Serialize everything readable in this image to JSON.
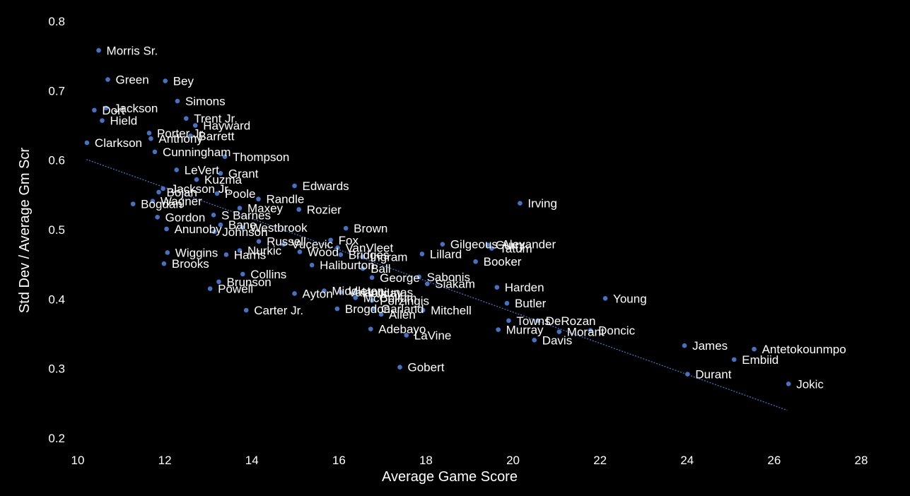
{
  "chart_data": {
    "type": "scatter",
    "title": "",
    "xlabel": "Average Game Score",
    "ylabel": "Std Dev / Average Gm Scr",
    "xlim": [
      10,
      28
    ],
    "ylim": [
      0.2,
      0.8
    ],
    "xticks": [
      10,
      12,
      14,
      16,
      18,
      20,
      22,
      24,
      26,
      28
    ],
    "xtick_labels": [
      "10",
      "12",
      "14",
      "16",
      "18",
      "20",
      "22",
      "24",
      "26",
      "28"
    ],
    "yticks": [
      0.2,
      0.3,
      0.4,
      0.5,
      0.6,
      0.7,
      0.8
    ],
    "ytick_labels": [
      "0.2",
      "0.3",
      "0.4",
      "0.5",
      "0.6",
      "0.7",
      "0.8"
    ],
    "grid": false,
    "legend": "none",
    "trendline": {
      "type": "linear",
      "style": "dotted",
      "x": [
        10.2,
        26.3
      ],
      "y": [
        0.601,
        0.24
      ]
    },
    "colors": {
      "background": "#000000",
      "point": "#4472C4",
      "text": "#ffffff",
      "trendline": "#4472C4"
    },
    "points": [
      {
        "label": "Morris Sr.",
        "x": 10.48,
        "y": 0.758
      },
      {
        "label": "Green",
        "x": 10.69,
        "y": 0.716
      },
      {
        "label": "Bey",
        "x": 12.01,
        "y": 0.714
      },
      {
        "label": "Simons",
        "x": 12.29,
        "y": 0.685
      },
      {
        "label": "Jackson",
        "x": 10.65,
        "y": 0.675
      },
      {
        "label": "Dort",
        "x": 10.38,
        "y": 0.672
      },
      {
        "label": "Trent Jr.",
        "x": 12.49,
        "y": 0.66
      },
      {
        "label": "Hield",
        "x": 10.56,
        "y": 0.657
      },
      {
        "label": "Hayward",
        "x": 12.7,
        "y": 0.65
      },
      {
        "label": "Porter Jr.",
        "x": 11.64,
        "y": 0.639
      },
      {
        "label": "Barrett",
        "x": 12.59,
        "y": 0.635
      },
      {
        "label": "Anthony",
        "x": 11.68,
        "y": 0.631
      },
      {
        "label": "Clarkson",
        "x": 10.21,
        "y": 0.625
      },
      {
        "label": "Cunningham",
        "x": 11.77,
        "y": 0.612
      },
      {
        "label": "Thompson",
        "x": 13.38,
        "y": 0.605
      },
      {
        "label": "LeVert",
        "x": 12.27,
        "y": 0.586
      },
      {
        "label": "Grant",
        "x": 13.28,
        "y": 0.581
      },
      {
        "label": "Kuzma",
        "x": 12.73,
        "y": 0.572
      },
      {
        "label": "Edwards",
        "x": 14.98,
        "y": 0.563
      },
      {
        "label": "Jackson Jr.",
        "x": 11.96,
        "y": 0.559
      },
      {
        "label": "Bojan",
        "x": 11.86,
        "y": 0.554
      },
      {
        "label": "Poole",
        "x": 13.2,
        "y": 0.552
      },
      {
        "label": "Randle",
        "x": 14.15,
        "y": 0.544
      },
      {
        "label": "Wagner",
        "x": 11.72,
        "y": 0.541
      },
      {
        "label": "Bogdan",
        "x": 11.27,
        "y": 0.537
      },
      {
        "label": "Irving",
        "x": 20.16,
        "y": 0.538
      },
      {
        "label": "Maxey",
        "x": 13.72,
        "y": 0.531
      },
      {
        "label": "Rozier",
        "x": 15.08,
        "y": 0.529
      },
      {
        "label": "S Barnes",
        "x": 13.12,
        "y": 0.521
      },
      {
        "label": "Gordon",
        "x": 11.83,
        "y": 0.518
      },
      {
        "label": "Bane",
        "x": 13.28,
        "y": 0.507
      },
      {
        "label": "Brown",
        "x": 16.16,
        "y": 0.502
      },
      {
        "label": "Anunoby",
        "x": 12.04,
        "y": 0.501
      },
      {
        "label": "Johnson",
        "x": 13.14,
        "y": 0.497
      },
      {
        "label": "Westbrook",
        "x": 13.78,
        "y": 0.503
      },
      {
        "label": "Gilgeous-Alexander",
        "x": 18.38,
        "y": 0.479
      },
      {
        "label": "Fox",
        "x": 15.81,
        "y": 0.485
      },
      {
        "label": "Russell",
        "x": 14.16,
        "y": 0.483
      },
      {
        "label": "Vucevic",
        "x": 14.73,
        "y": 0.479
      },
      {
        "label": "Curry",
        "x": 19.42,
        "y": 0.478
      },
      {
        "label": "VanVleet",
        "x": 15.97,
        "y": 0.474
      },
      {
        "label": "Tatum",
        "x": 19.51,
        "y": 0.473
      },
      {
        "label": "Nurkic",
        "x": 13.72,
        "y": 0.47
      },
      {
        "label": "Wood",
        "x": 15.1,
        "y": 0.468
      },
      {
        "label": "Wiggins",
        "x": 12.06,
        "y": 0.467
      },
      {
        "label": "Lillard",
        "x": 17.91,
        "y": 0.465
      },
      {
        "label": "Bridges",
        "x": 16.04,
        "y": 0.464
      },
      {
        "label": "Ingram",
        "x": 16.54,
        "y": 0.461
      },
      {
        "label": "Harris",
        "x": 13.41,
        "y": 0.464
      },
      {
        "label": "Booker",
        "x": 19.14,
        "y": 0.454
      },
      {
        "label": "Brooks",
        "x": 11.98,
        "y": 0.451
      },
      {
        "label": "Haliburton",
        "x": 15.38,
        "y": 0.449
      },
      {
        "label": "Ball",
        "x": 16.55,
        "y": 0.444
      },
      {
        "label": "Collins",
        "x": 13.79,
        "y": 0.436
      },
      {
        "label": "George",
        "x": 16.76,
        "y": 0.431
      },
      {
        "label": "Sabonis",
        "x": 17.84,
        "y": 0.432
      },
      {
        "label": "Brunson",
        "x": 13.24,
        "y": 0.425
      },
      {
        "label": "Siakam",
        "x": 18.03,
        "y": 0.422
      },
      {
        "label": "Harden",
        "x": 19.63,
        "y": 0.417
      },
      {
        "label": "Powell",
        "x": 13.04,
        "y": 0.415
      },
      {
        "label": "Middleton",
        "x": 15.66,
        "y": 0.412
      },
      {
        "label": "Valanciunas",
        "x": 16.04,
        "y": 0.41
      },
      {
        "label": "Holiday",
        "x": 16.36,
        "y": 0.409
      },
      {
        "label": "Ayton",
        "x": 14.98,
        "y": 0.408
      },
      {
        "label": "Young",
        "x": 22.12,
        "y": 0.401
      },
      {
        "label": "McCollum",
        "x": 16.38,
        "y": 0.402
      },
      {
        "label": "Porzingis",
        "x": 16.76,
        "y": 0.398
      },
      {
        "label": "Butler",
        "x": 19.86,
        "y": 0.394
      },
      {
        "label": "Brogdon",
        "x": 15.96,
        "y": 0.386
      },
      {
        "label": "Garland",
        "x": 16.79,
        "y": 0.386
      },
      {
        "label": "Carter Jr.",
        "x": 13.87,
        "y": 0.384
      },
      {
        "label": "Mitchell",
        "x": 17.93,
        "y": 0.384
      },
      {
        "label": "Allen",
        "x": 16.97,
        "y": 0.378
      },
      {
        "label": "Towns",
        "x": 19.9,
        "y": 0.369
      },
      {
        "label": "DeRozan",
        "x": 20.57,
        "y": 0.369
      },
      {
        "label": "Adebayo",
        "x": 16.73,
        "y": 0.357
      },
      {
        "label": "Murray",
        "x": 19.66,
        "y": 0.356
      },
      {
        "label": "Morant",
        "x": 21.06,
        "y": 0.353
      },
      {
        "label": "Doncic",
        "x": 21.78,
        "y": 0.355
      },
      {
        "label": "LaVine",
        "x": 17.55,
        "y": 0.348
      },
      {
        "label": "Davis",
        "x": 20.49,
        "y": 0.341
      },
      {
        "label": "James",
        "x": 23.94,
        "y": 0.333
      },
      {
        "label": "Antetokounmpo",
        "x": 25.54,
        "y": 0.328
      },
      {
        "label": "Embiid",
        "x": 25.08,
        "y": 0.313
      },
      {
        "label": "Gobert",
        "x": 17.4,
        "y": 0.302
      },
      {
        "label": "Durant",
        "x": 24.01,
        "y": 0.292
      },
      {
        "label": "Jokic",
        "x": 26.33,
        "y": 0.278
      }
    ]
  }
}
